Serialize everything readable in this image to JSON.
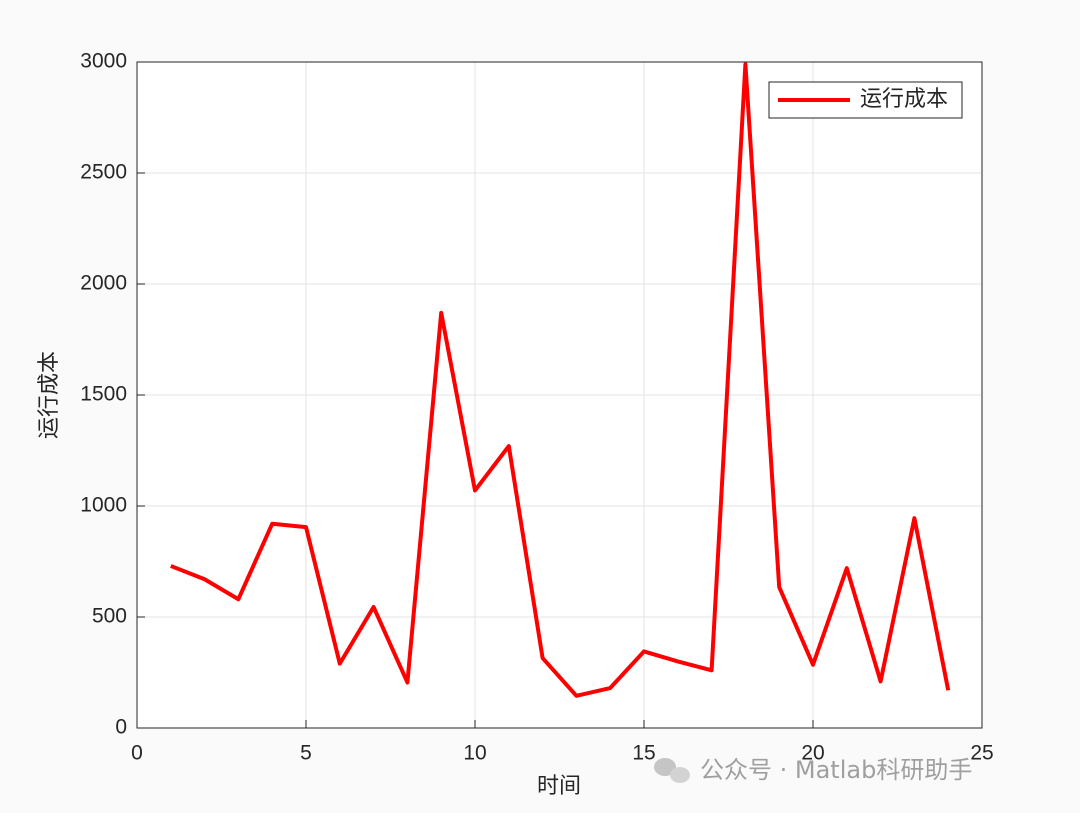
{
  "chart_data": {
    "type": "line",
    "x": [
      1,
      2,
      3,
      4,
      5,
      6,
      7,
      8,
      9,
      10,
      11,
      12,
      13,
      14,
      15,
      16,
      17,
      18,
      19,
      20,
      21,
      22,
      23,
      24
    ],
    "series": [
      {
        "name": "运行成本",
        "color": "#ff0000",
        "values": [
          730,
          670,
          580,
          920,
          905,
          290,
          545,
          205,
          1870,
          1070,
          1270,
          315,
          145,
          180,
          345,
          300,
          260,
          2990,
          635,
          285,
          720,
          210,
          945,
          170
        ]
      }
    ],
    "xlabel": "时间",
    "ylabel": "运行成本",
    "xlim": [
      0,
      25
    ],
    "xticks": [
      0,
      5,
      10,
      15,
      20,
      25
    ],
    "ylim": [
      0,
      3000
    ],
    "yticks": [
      0,
      500,
      1000,
      1500,
      2000,
      2500,
      3000
    ],
    "grid": true,
    "legend": "upper right",
    "watermark": "公众号 · Matlab科研助手"
  }
}
